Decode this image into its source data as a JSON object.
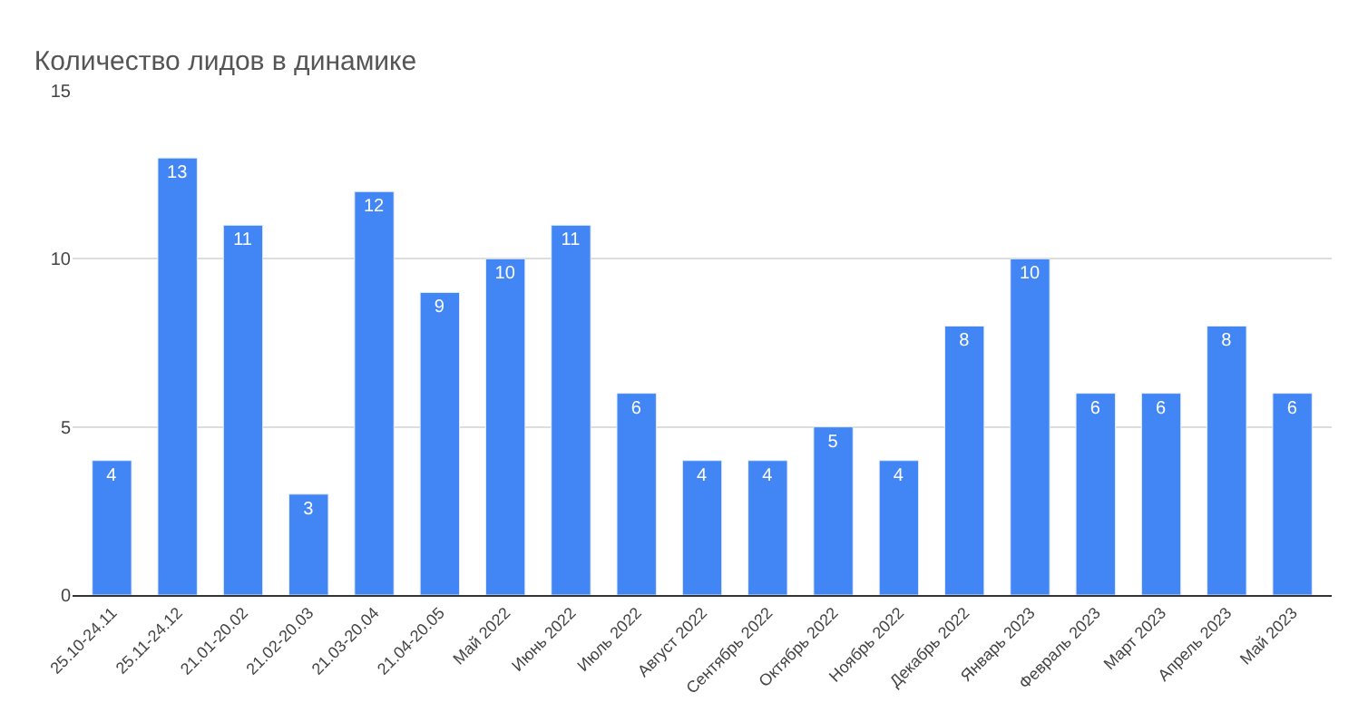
{
  "chart_data": {
    "type": "bar",
    "title": "Количество лидов в динамике",
    "categories": [
      "25.10-24.11",
      "25.11-24.12",
      "21.01-20.02",
      "21.02-20.03",
      "21.03-20.04",
      "21.04-20.05",
      "Май 2022",
      "Июнь 2022",
      "Июль 2022",
      "Август 2022",
      "Сентябрь 2022",
      "Октябрь 2022",
      "Ноябрь 2022",
      "Декабрь 2022",
      "Январь 2023",
      "Февраль 2023",
      "Март 2023",
      "Апрель 2023",
      "Май 2023"
    ],
    "values": [
      4,
      13,
      11,
      3,
      12,
      9,
      10,
      11,
      6,
      4,
      4,
      5,
      4,
      8,
      10,
      6,
      6,
      8,
      6
    ],
    "color": "#4285f4",
    "ylim": [
      0,
      15
    ],
    "yticks": [
      0,
      5,
      10,
      15
    ],
    "grid": "y",
    "data_labels": true
  }
}
